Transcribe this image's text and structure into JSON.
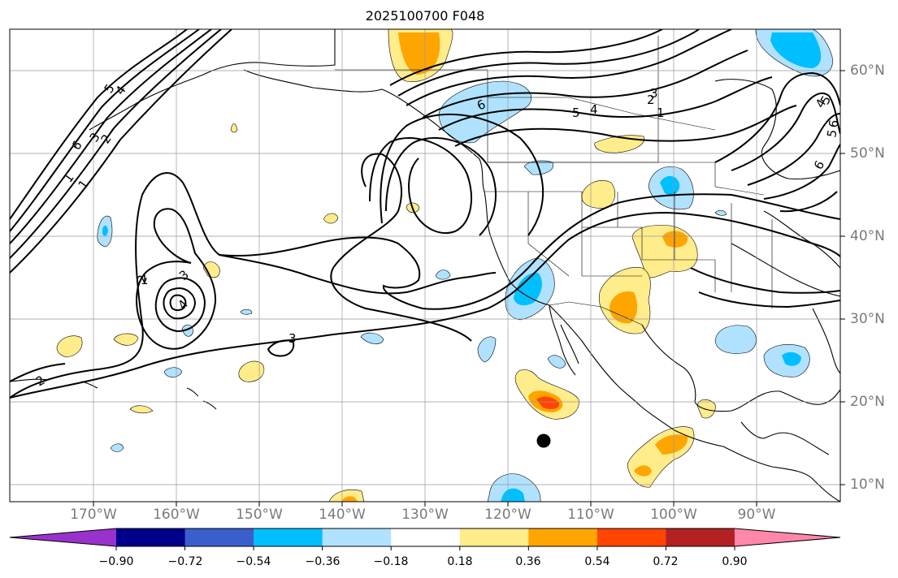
{
  "title": "2025100700 F048",
  "lon_labels": [
    "170°W",
    "160°W",
    "150°W",
    "140°W",
    "130°W",
    "120°W",
    "110°W",
    "100°W",
    "90°W"
  ],
  "lat_labels": [
    "60°N",
    "50°N",
    "40°N",
    "30°N",
    "20°N",
    "10°N"
  ],
  "colorbar": {
    "ticks": [
      "−0.90",
      "−0.72",
      "−0.54",
      "−0.36",
      "−0.18",
      "0.18",
      "0.36",
      "0.54",
      "0.72",
      "0.90"
    ],
    "colors": [
      "#9932cc",
      "#00008b",
      "#3a5fcd",
      "#00bfff",
      "#b0e2ff",
      "#ffffff",
      "#ffec8b",
      "#ffa500",
      "#ff4500",
      "#b22222",
      "#ff88aa"
    ],
    "extend": "both"
  },
  "contour_labels": [
    "1",
    "1",
    "2",
    "3",
    "4",
    "5",
    "6",
    "6",
    "5",
    "4",
    "3",
    "2",
    "1",
    "1",
    "2",
    "3",
    "4",
    "5",
    "6",
    "6",
    "5",
    "4",
    "3",
    "2",
    "1",
    "1"
  ],
  "marker": "storm-position-dot"
}
